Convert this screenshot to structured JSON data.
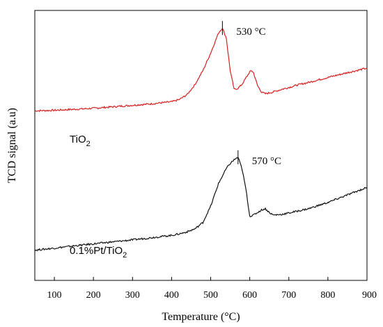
{
  "chart_data": {
    "type": "line",
    "title": "",
    "xlabel": "Temperature (°C)",
    "ylabel": "TCD signal (a.u)",
    "xlim": [
      50,
      900
    ],
    "xticks": [
      100,
      200,
      300,
      400,
      500,
      600,
      700,
      800,
      900
    ],
    "ylim": [
      0,
      100
    ],
    "grid": false,
    "legend": "none",
    "series": [
      {
        "name": "TiO2",
        "color": "#d62020",
        "x": [
          50,
          100,
          150,
          200,
          250,
          300,
          350,
          400,
          420,
          440,
          460,
          480,
          500,
          510,
          520,
          530,
          540,
          550,
          560,
          570,
          580,
          590,
          600,
          605,
          610,
          620,
          630,
          640,
          660,
          680,
          700,
          720,
          750,
          800,
          850,
          900
        ],
        "y": [
          62.0,
          62.2,
          62.6,
          63.0,
          63.6,
          64.2,
          64.8,
          65.6,
          66.5,
          68.5,
          72.5,
          78.0,
          85.0,
          89.0,
          93.0,
          95.0,
          91.0,
          78.0,
          70.5,
          71.0,
          72.5,
          75.0,
          77.5,
          78.0,
          77.0,
          72.0,
          69.5,
          68.8,
          69.5,
          70.5,
          71.3,
          72.2,
          73.3,
          75.3,
          77.2,
          79.0
        ],
        "label": "TiO",
        "label_sub": "2"
      },
      {
        "name": "0.1%Pt/TiO2",
        "color": "#111111",
        "x": [
          50,
          100,
          150,
          200,
          250,
          300,
          350,
          400,
          420,
          440,
          460,
          480,
          500,
          520,
          540,
          550,
          560,
          570,
          580,
          590,
          600,
          610,
          620,
          630,
          640,
          650,
          660,
          680,
          700,
          750,
          800,
          850,
          900
        ],
        "y": [
          6.5,
          7.3,
          8.2,
          9.0,
          9.8,
          10.6,
          11.5,
          12.4,
          13.0,
          13.8,
          15.0,
          17.5,
          24.0,
          33.0,
          39.0,
          41.0,
          42.5,
          43.5,
          39.0,
          31.0,
          20.0,
          20.5,
          21.5,
          22.5,
          23.0,
          21.5,
          20.5,
          20.7,
          21.3,
          23.0,
          25.5,
          28.5,
          31.5
        ],
        "label": "0.1%Pt/TiO",
        "label_sub": "2"
      }
    ],
    "annotations": [
      {
        "text": "530 °C",
        "x": 530,
        "y": 95
      },
      {
        "text": "570 °C",
        "x": 570,
        "y": 43.5
      }
    ]
  }
}
